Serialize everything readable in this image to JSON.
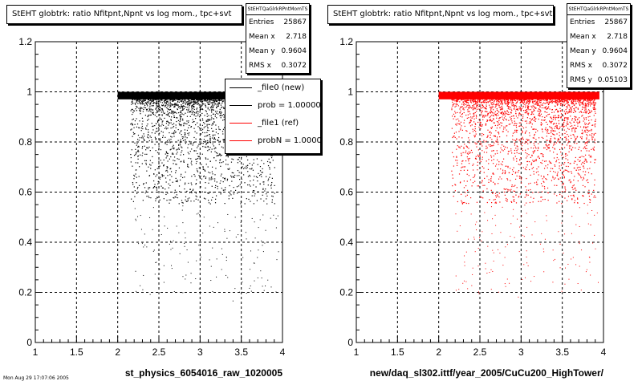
{
  "footnote": "Mon Aug 29 17:07:06 2005",
  "chart_data": [
    {
      "type": "scatter",
      "title": "StEHT globtrk: ratio Nfitpnt,Npnt vs log mom., tpc+svt",
      "xlabel": "st_physics_6054016_raw_1020005",
      "ylabel": "",
      "xlim": [
        1,
        4
      ],
      "ylim": [
        0,
        1.2
      ],
      "xticks": [
        "1",
        "1.5",
        "2",
        "2.5",
        "3",
        "3.5",
        "4"
      ],
      "yticks": [
        "0",
        "0.2",
        "0.4",
        "0.6",
        "0.8",
        "1",
        "1.2"
      ],
      "grid": true,
      "marker_color": "#000000",
      "stats": {
        "name": "StEHTQaGlrkRPntMomTS",
        "rows": [
          {
            "label": "Entries",
            "value": "25867"
          },
          {
            "label": "Mean x",
            "value": "2.718"
          },
          {
            "label": "Mean y",
            "value": "0.9604"
          },
          {
            "label": "RMS x",
            "value": "0.3072"
          }
        ]
      },
      "legend": [
        {
          "label": "_file0 (new)",
          "color": "#000000"
        },
        {
          "label": "prob = 1.000000",
          "color": "#000000"
        },
        {
          "label": "_file1 (ref)",
          "color": "#ff0000"
        },
        {
          "label": "probN = 1.000000",
          "color": "#ff0000"
        }
      ],
      "series": [
        {
          "name": "_file0 (new)",
          "entries": 25867,
          "band": {
            "x": [
              2.0,
              3.95
            ],
            "y": [
              0.97,
              1.0
            ]
          },
          "spread": {
            "x": [
              2.1,
              3.9
            ],
            "y": [
              0.5,
              0.97
            ]
          },
          "outliers": {
            "x": [
              2.2,
              3.9
            ],
            "y": [
              0.2,
              0.5
            ]
          }
        }
      ]
    },
    {
      "type": "scatter",
      "title": "StEHT globtrk: ratio Nfitpnt,Npnt vs log mom., tpc+svt",
      "xlabel": "new/daq_sl302.ittf/year_2005/CuCu200_HighTower/",
      "ylabel": "",
      "xlim": [
        1,
        4
      ],
      "ylim": [
        0,
        1.2
      ],
      "xticks": [
        "1",
        "1.5",
        "2",
        "2.5",
        "3",
        "3.5",
        "4"
      ],
      "yticks": [
        "0",
        "0.2",
        "0.4",
        "0.6",
        "0.8",
        "1",
        "1.2"
      ],
      "grid": true,
      "marker_color": "#ff0000",
      "stats": {
        "name": "StEHTQaGlrkRPntMomTS",
        "rows": [
          {
            "label": "Entries",
            "value": "25867"
          },
          {
            "label": "Mean x",
            "value": "2.718"
          },
          {
            "label": "Mean y",
            "value": "0.9604"
          },
          {
            "label": "RMS x",
            "value": "0.3072"
          },
          {
            "label": "RMS y",
            "value": "0.05103"
          }
        ]
      },
      "series": [
        {
          "name": "_file1 (ref)",
          "entries": 25867,
          "band": {
            "x": [
              2.0,
              3.95
            ],
            "y": [
              0.97,
              1.0
            ]
          },
          "spread": {
            "x": [
              2.1,
              3.95
            ],
            "y": [
              0.5,
              0.97
            ]
          },
          "outliers": {
            "x": [
              2.2,
              3.95
            ],
            "y": [
              0.15,
              0.5
            ]
          }
        }
      ]
    }
  ]
}
